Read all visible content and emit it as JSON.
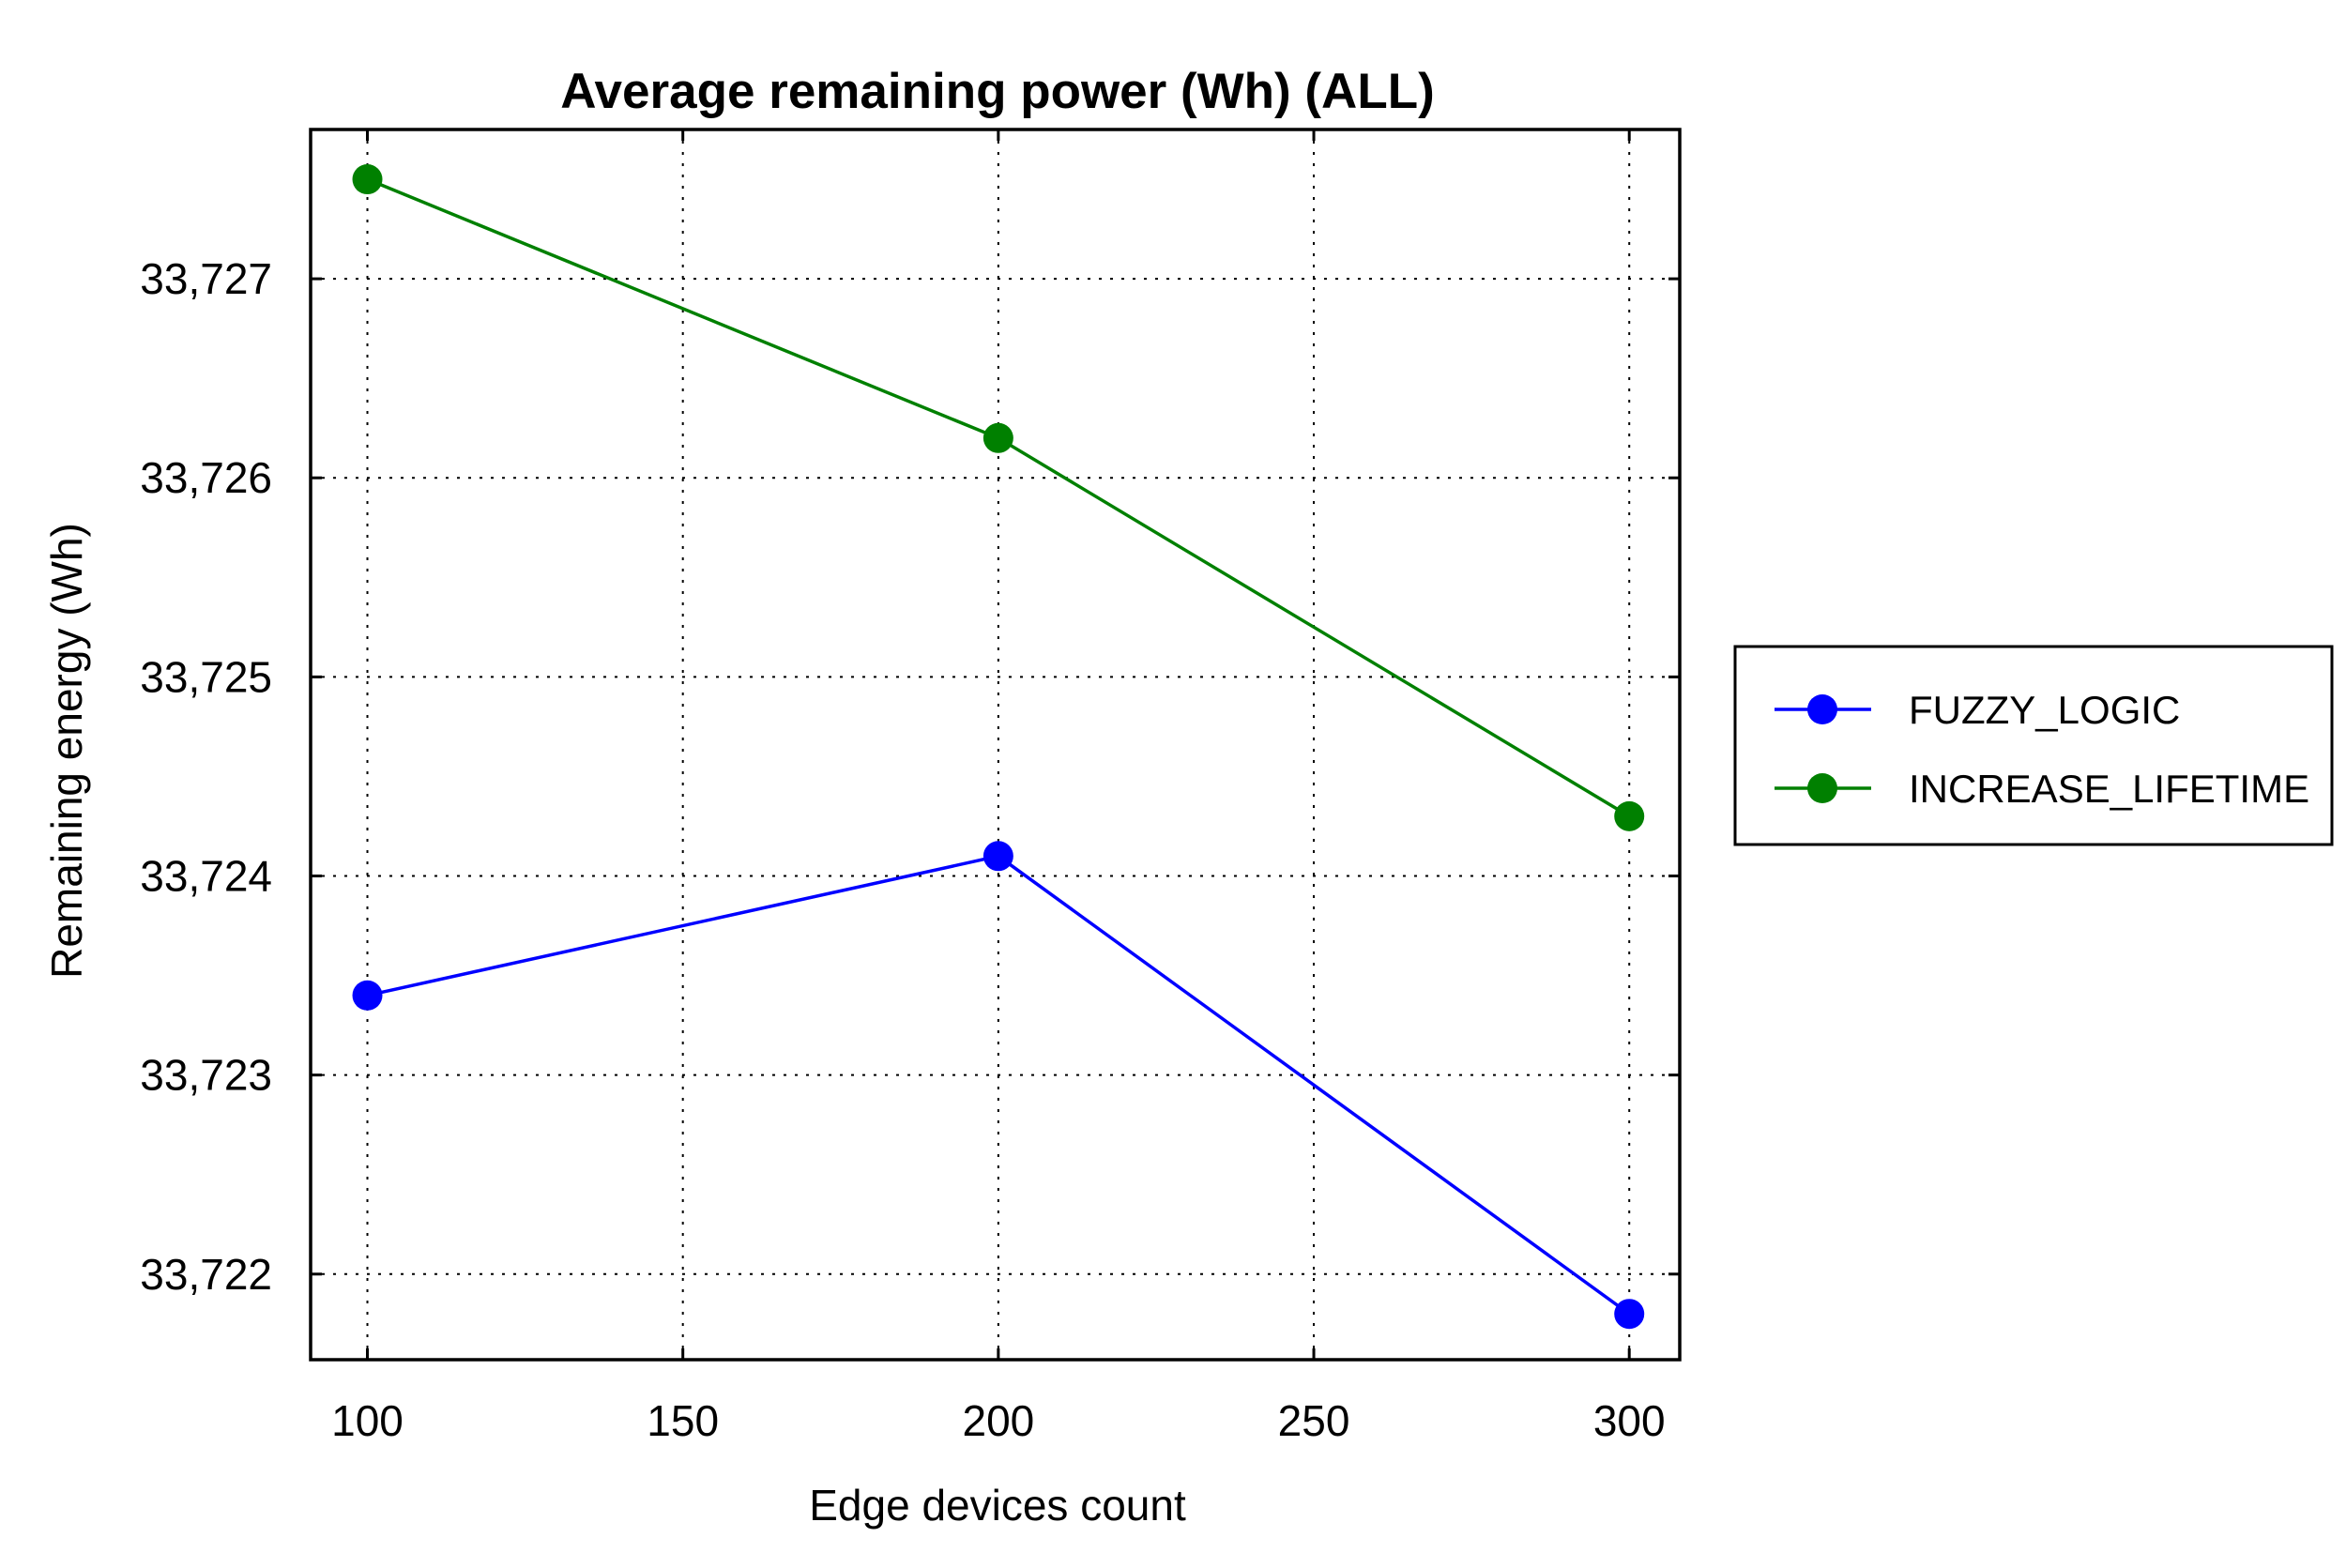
{
  "chart_data": {
    "type": "line",
    "title": "Average remaining power (Wh) (ALL)",
    "xlabel": "Edge devices count",
    "ylabel": "Remaining energy (Wh)",
    "x_ticks": [
      100,
      150,
      200,
      250,
      300
    ],
    "x_tick_labels": [
      "100",
      "150",
      "200",
      "250",
      "300"
    ],
    "y_ticks": [
      33.722,
      33.723,
      33.724,
      33.725,
      33.726,
      33.727
    ],
    "y_tick_labels": [
      "33,722",
      "33,723",
      "33,724",
      "33,725",
      "33,726",
      "33,727"
    ],
    "xlim": [
      91,
      308
    ],
    "ylim": [
      33.72157,
      33.72775
    ],
    "grid": true,
    "grid_style": "dotted",
    "legend_position": "right",
    "x": [
      100,
      200,
      300
    ],
    "series": [
      {
        "name": "FUZZY_LOGIC",
        "color": "#0000ff",
        "values": [
          33.7234,
          33.7241,
          33.7218
        ]
      },
      {
        "name": "INCREASE_LIFETIME",
        "color": "#008000",
        "values": [
          33.7275,
          33.7262,
          33.7243
        ]
      }
    ]
  }
}
